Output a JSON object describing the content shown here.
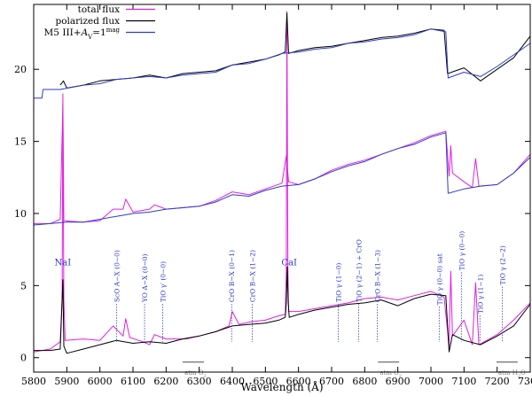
{
  "chart_data": {
    "type": "line",
    "xlabel": "Wavelength (Å)",
    "ylabel": "",
    "xlim": [
      5800,
      7300
    ],
    "ylim": [
      -1,
      24.5
    ],
    "x_ticks": [
      5800,
      5900,
      6000,
      6100,
      6200,
      6300,
      6400,
      6500,
      6600,
      6700,
      6800,
      6900,
      7000,
      7100,
      7200,
      7300
    ],
    "y_ticks": [
      0,
      5,
      10,
      15,
      20
    ],
    "legend": {
      "position": "top-left",
      "entries": [
        {
          "label": "total flux",
          "color": "#e020e0"
        },
        {
          "label": "polarized flux",
          "color": "#000000"
        },
        {
          "label_main": "M5 III+",
          "label_italic": "A",
          "label_sub": "V",
          "label_eq": "=1",
          "label_sup": "mag",
          "color": "#2a3cd0"
        }
      ]
    },
    "series": [
      {
        "name": "total flux (bottom)",
        "color": "#e020e0",
        "points": [
          [
            5800,
            0.4
          ],
          [
            5850,
            0.6
          ],
          [
            5880,
            1.1
          ],
          [
            5886,
            4.0
          ],
          [
            5888,
            18.3
          ],
          [
            5891,
            4.0
          ],
          [
            5895,
            1.2
          ],
          [
            5950,
            1.3
          ],
          [
            6000,
            1.2
          ],
          [
            6040,
            2.2
          ],
          [
            6070,
            1.5
          ],
          [
            6078,
            2.7
          ],
          [
            6090,
            1.4
          ],
          [
            6130,
            1.1
          ],
          [
            6150,
            0.9
          ],
          [
            6165,
            1.6
          ],
          [
            6200,
            1.3
          ],
          [
            6260,
            1.3
          ],
          [
            6300,
            1.5
          ],
          [
            6350,
            1.8
          ],
          [
            6390,
            2.2
          ],
          [
            6400,
            3.2
          ],
          [
            6420,
            2.3
          ],
          [
            6460,
            2.5
          ],
          [
            6500,
            2.6
          ],
          [
            6540,
            2.9
          ],
          [
            6560,
            3.0
          ],
          [
            6563,
            6.0
          ],
          [
            6565,
            24.0
          ],
          [
            6568,
            6.0
          ],
          [
            6570,
            3.2
          ],
          [
            6600,
            3.2
          ],
          [
            6650,
            3.4
          ],
          [
            6700,
            3.6
          ],
          [
            6750,
            3.8
          ],
          [
            6800,
            4.1
          ],
          [
            6850,
            4.2
          ],
          [
            6900,
            4.0
          ],
          [
            6950,
            4.3
          ],
          [
            7000,
            4.6
          ],
          [
            7040,
            4.2
          ],
          [
            7055,
            0.8
          ],
          [
            7060,
            6.0
          ],
          [
            7065,
            1.5
          ],
          [
            7100,
            2.6
          ],
          [
            7125,
            0.9
          ],
          [
            7135,
            5.2
          ],
          [
            7145,
            0.9
          ],
          [
            7200,
            1.6
          ],
          [
            7250,
            2.6
          ],
          [
            7300,
            3.8
          ]
        ]
      },
      {
        "name": "polarized flux (bottom)",
        "color": "#000000",
        "points": [
          [
            5800,
            0.5
          ],
          [
            5850,
            0.5
          ],
          [
            5880,
            0.6
          ],
          [
            5888,
            5.4
          ],
          [
            5891,
            0.8
          ],
          [
            5900,
            0.3
          ],
          [
            5950,
            0.6
          ],
          [
            6000,
            0.9
          ],
          [
            6050,
            1.2
          ],
          [
            6100,
            1.0
          ],
          [
            6150,
            1.1
          ],
          [
            6200,
            1.0
          ],
          [
            6250,
            1.3
          ],
          [
            6300,
            1.5
          ],
          [
            6350,
            1.8
          ],
          [
            6400,
            2.2
          ],
          [
            6450,
            2.3
          ],
          [
            6500,
            2.4
          ],
          [
            6540,
            2.6
          ],
          [
            6560,
            2.8
          ],
          [
            6563,
            3.8
          ],
          [
            6566,
            6.3
          ],
          [
            6569,
            3.8
          ],
          [
            6572,
            2.8
          ],
          [
            6600,
            3.0
          ],
          [
            6650,
            3.3
          ],
          [
            6700,
            3.5
          ],
          [
            6750,
            3.7
          ],
          [
            6800,
            3.8
          ],
          [
            6850,
            4.0
          ],
          [
            6900,
            3.6
          ],
          [
            6950,
            4.1
          ],
          [
            7000,
            4.4
          ],
          [
            7045,
            4.3
          ],
          [
            7055,
            0.4
          ],
          [
            7065,
            1.6
          ],
          [
            7100,
            1.2
          ],
          [
            7150,
            0.9
          ],
          [
            7200,
            1.5
          ],
          [
            7250,
            2.2
          ],
          [
            7300,
            3.7
          ]
        ]
      },
      {
        "name": "total flux (middle)",
        "color": "#e020e0",
        "points": [
          [
            5800,
            9.3
          ],
          [
            5850,
            9.3
          ],
          [
            5880,
            9.6
          ],
          [
            5888,
            17.6
          ],
          [
            5891,
            9.5
          ],
          [
            5950,
            9.4
          ],
          [
            6000,
            9.5
          ],
          [
            6040,
            10.3
          ],
          [
            6070,
            10.3
          ],
          [
            6078,
            11.0
          ],
          [
            6100,
            10.1
          ],
          [
            6150,
            10.3
          ],
          [
            6165,
            10.6
          ],
          [
            6200,
            10.3
          ],
          [
            6300,
            10.5
          ],
          [
            6350,
            10.9
          ],
          [
            6400,
            11.5
          ],
          [
            6450,
            11.3
          ],
          [
            6500,
            11.7
          ],
          [
            6550,
            12.1
          ],
          [
            6563,
            14.0
          ],
          [
            6570,
            12.2
          ],
          [
            6600,
            12.0
          ],
          [
            6650,
            12.4
          ],
          [
            6700,
            13.0
          ],
          [
            6750,
            13.4
          ],
          [
            6800,
            13.7
          ],
          [
            6850,
            14.1
          ],
          [
            6900,
            14.5
          ],
          [
            6950,
            14.9
          ],
          [
            7000,
            15.4
          ],
          [
            7045,
            15.7
          ],
          [
            7055,
            12.6
          ],
          [
            7060,
            14.7
          ],
          [
            7065,
            12.8
          ],
          [
            7100,
            12.2
          ],
          [
            7125,
            11.8
          ],
          [
            7135,
            13.8
          ],
          [
            7145,
            11.9
          ],
          [
            7200,
            12.0
          ],
          [
            7250,
            12.8
          ],
          [
            7300,
            14.1
          ]
        ]
      },
      {
        "name": "polarized flux (middle)",
        "color": "#2a3cd0",
        "points": [
          [
            5800,
            9.2
          ],
          [
            5850,
            9.3
          ],
          [
            5900,
            9.4
          ],
          [
            5950,
            9.4
          ],
          [
            6000,
            9.6
          ],
          [
            6050,
            9.8
          ],
          [
            6100,
            10.0
          ],
          [
            6150,
            10.1
          ],
          [
            6200,
            10.3
          ],
          [
            6250,
            10.4
          ],
          [
            6300,
            10.5
          ],
          [
            6350,
            10.8
          ],
          [
            6400,
            11.3
          ],
          [
            6450,
            11.2
          ],
          [
            6500,
            11.6
          ],
          [
            6550,
            11.9
          ],
          [
            6600,
            12.0
          ],
          [
            6650,
            12.4
          ],
          [
            6700,
            12.9
          ],
          [
            6750,
            13.3
          ],
          [
            6800,
            13.6
          ],
          [
            6850,
            14.1
          ],
          [
            6900,
            14.5
          ],
          [
            6950,
            14.8
          ],
          [
            7000,
            15.3
          ],
          [
            7045,
            15.6
          ],
          [
            7052,
            11.4
          ],
          [
            7100,
            11.7
          ],
          [
            7150,
            11.9
          ],
          [
            7200,
            12.0
          ],
          [
            7250,
            12.8
          ],
          [
            7300,
            13.9
          ]
        ]
      },
      {
        "name": "polarized flux (top)",
        "color": "#000000",
        "points": [
          [
            5880,
            18.9
          ],
          [
            5890,
            19.2
          ],
          [
            5900,
            18.7
          ],
          [
            5950,
            18.9
          ],
          [
            6000,
            19.2
          ],
          [
            6050,
            19.3
          ],
          [
            6100,
            19.4
          ],
          [
            6150,
            19.6
          ],
          [
            6200,
            19.4
          ],
          [
            6250,
            19.7
          ],
          [
            6300,
            19.8
          ],
          [
            6350,
            19.9
          ],
          [
            6400,
            20.3
          ],
          [
            6450,
            20.5
          ],
          [
            6500,
            20.7
          ],
          [
            6540,
            21.0
          ],
          [
            6560,
            21.2
          ],
          [
            6565,
            23.9
          ],
          [
            6570,
            21.1
          ],
          [
            6600,
            21.3
          ],
          [
            6650,
            21.5
          ],
          [
            6700,
            21.6
          ],
          [
            6750,
            21.8
          ],
          [
            6800,
            22.0
          ],
          [
            6850,
            22.2
          ],
          [
            6900,
            22.3
          ],
          [
            6950,
            22.5
          ],
          [
            7000,
            22.8
          ],
          [
            7040,
            22.7
          ],
          [
            7050,
            19.7
          ],
          [
            7100,
            20.1
          ],
          [
            7150,
            19.2
          ],
          [
            7200,
            20.0
          ],
          [
            7250,
            20.8
          ],
          [
            7300,
            22.3
          ]
        ]
      },
      {
        "name": "M5 III+A_V=1 mag (top)",
        "color": "#2a3cd0",
        "points": [
          [
            5800,
            18.0
          ],
          [
            5825,
            18.0
          ],
          [
            5828,
            18.6
          ],
          [
            5880,
            18.6
          ],
          [
            5950,
            18.9
          ],
          [
            6000,
            19.0
          ],
          [
            6050,
            19.3
          ],
          [
            6100,
            19.4
          ],
          [
            6150,
            19.5
          ],
          [
            6200,
            19.4
          ],
          [
            6250,
            19.6
          ],
          [
            6300,
            19.7
          ],
          [
            6350,
            19.8
          ],
          [
            6400,
            20.3
          ],
          [
            6450,
            20.4
          ],
          [
            6500,
            20.7
          ],
          [
            6550,
            21.1
          ],
          [
            6600,
            21.2
          ],
          [
            6650,
            21.4
          ],
          [
            6700,
            21.5
          ],
          [
            6750,
            21.8
          ],
          [
            6800,
            21.9
          ],
          [
            6850,
            22.1
          ],
          [
            6900,
            22.2
          ],
          [
            6950,
            22.4
          ],
          [
            7000,
            22.8
          ],
          [
            7045,
            22.6
          ],
          [
            7052,
            19.4
          ],
          [
            7100,
            19.8
          ],
          [
            7150,
            19.5
          ],
          [
            7200,
            20.2
          ],
          [
            7250,
            21.0
          ],
          [
            7300,
            21.8
          ]
        ]
      }
    ],
    "annotations": [
      {
        "text": "NaI",
        "x": 5888,
        "y": 6.4
      },
      {
        "text": "CaI",
        "x": 6572,
        "y": 6.4
      },
      {
        "text": "ScO A−X (0−0)",
        "x": 6050,
        "y": 3.6
      },
      {
        "text": "YO A−X (0−0)",
        "x": 6135,
        "y": 3.6
      },
      {
        "text": "TiO γ′ (0−0)",
        "x": 6190,
        "y": 3.6
      },
      {
        "text": "CrO B−X (0−1)",
        "x": 6398,
        "y": 3.6
      },
      {
        "text": "CrO B−X (1−2)",
        "x": 6460,
        "y": 3.6
      },
      {
        "text": "TiO γ (1−0)",
        "x": 6720,
        "y": 3.6
      },
      {
        "text": "TiO γ (2−1) + CrO",
        "x": 6782,
        "y": 3.6
      },
      {
        "text": "CrO B−X (1−3)",
        "x": 6838,
        "y": 3.6
      },
      {
        "text": "TiO γ (0−0) sat",
        "x": 7025,
        "y": 3.4
      },
      {
        "text": "TiO γ (0−0)",
        "x": 7092,
        "y": 5.8
      },
      {
        "text": "TiO γ (1−1)",
        "x": 7148,
        "y": 2.8
      },
      {
        "text": "TiO γ (2−2)",
        "x": 7216,
        "y": 4.8
      },
      {
        "text": "atm O",
        "sub": "2",
        "x": 6282,
        "y": -0.7
      },
      {
        "text": "atm O",
        "sub": "2",
        "x": 6872,
        "y": -0.7
      },
      {
        "text": "atm H",
        "sub": "2",
        "tail": "O",
        "x": 7230,
        "y": -0.7
      }
    ]
  }
}
